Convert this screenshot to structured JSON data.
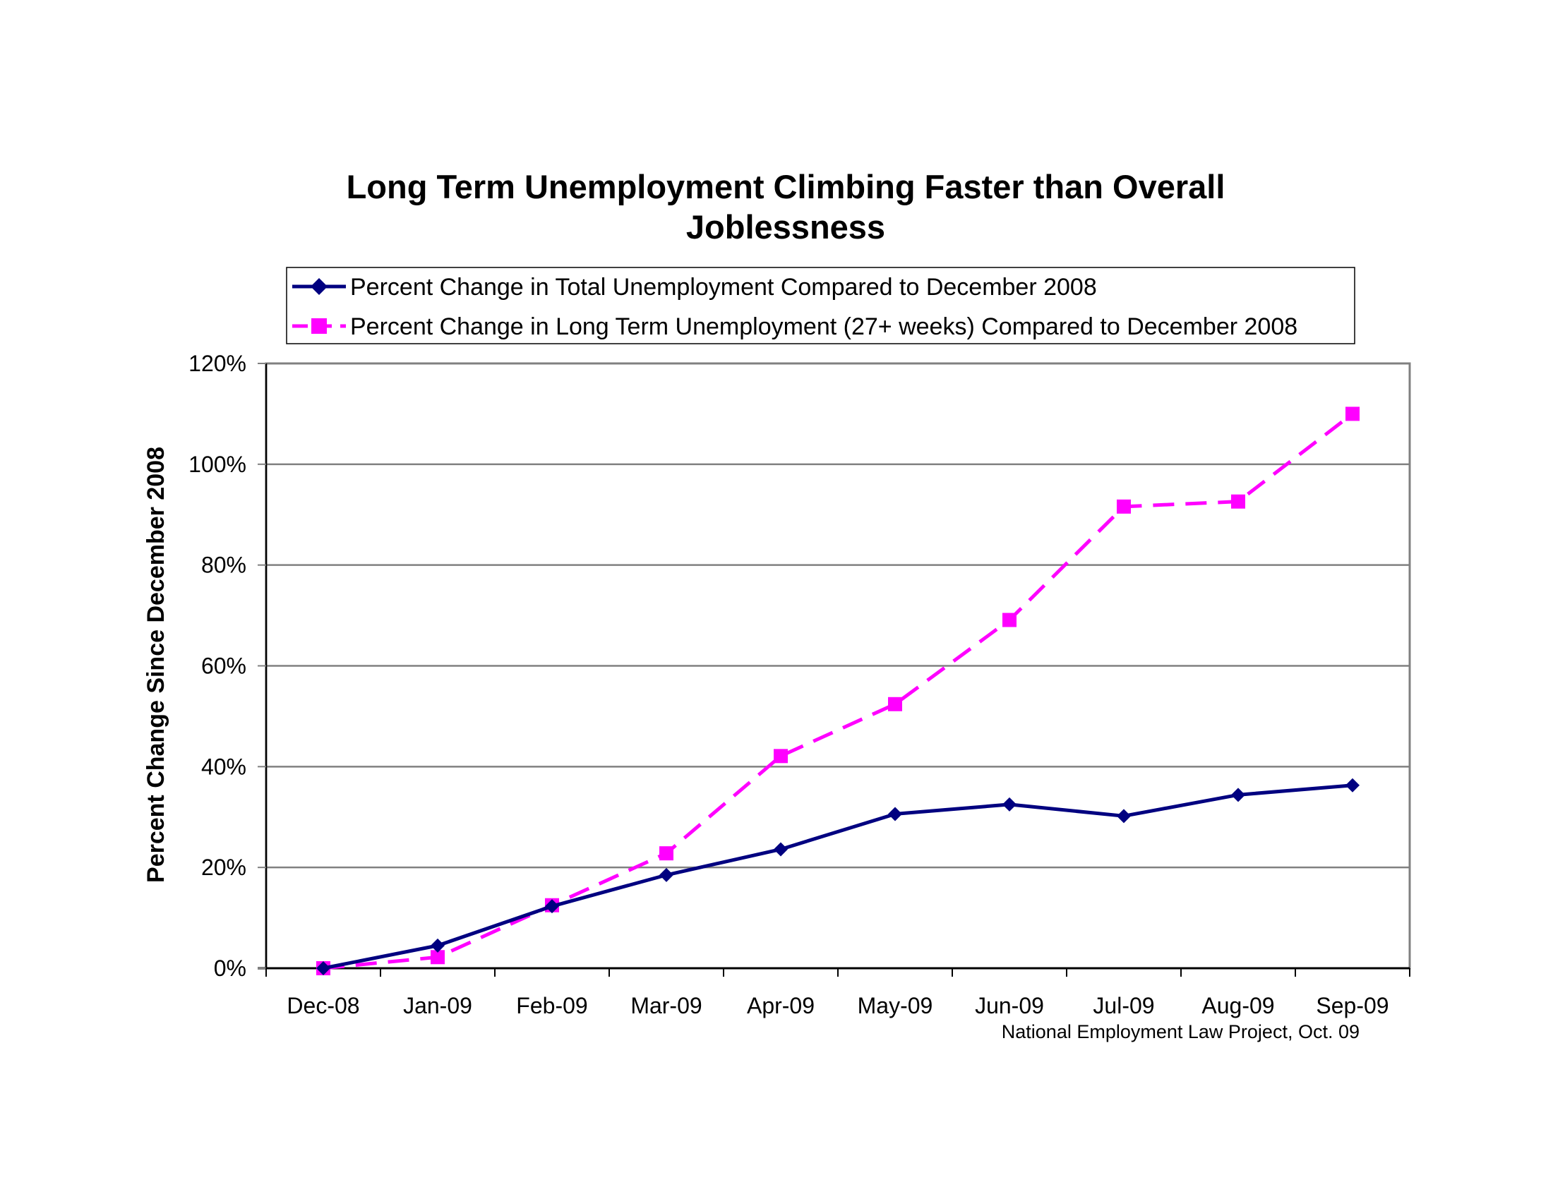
{
  "chart_data": {
    "type": "line",
    "title_lines": [
      "Long Term Unemployment Climbing Faster than Overall",
      "Joblessness"
    ],
    "ylabel": "Percent Change Since December 2008",
    "xlabel": "",
    "categories": [
      "Dec-08",
      "Jan-09",
      "Feb-09",
      "Mar-09",
      "Apr-09",
      "May-09",
      "Jun-09",
      "Jul-09",
      "Aug-09",
      "Sep-09"
    ],
    "y_ticks": [
      "0%",
      "20%",
      "40%",
      "60%",
      "80%",
      "100%",
      "120%"
    ],
    "ylim": [
      0,
      120
    ],
    "y_unit": "%",
    "grid": true,
    "legend_position": "top",
    "series": [
      {
        "name": "Percent Change in Total Unemployment Compared to December 2008",
        "color": "#000080",
        "marker": "diamond",
        "line_style": "solid",
        "values": [
          0,
          4.5,
          12.3,
          18.5,
          23.6,
          30.6,
          32.5,
          30.2,
          34.4,
          36.3
        ]
      },
      {
        "name": "Percent Change in Long Term Unemployment (27+ weeks) Compared to December 2008",
        "color": "#FF00FF",
        "marker": "square",
        "line_style": "dashed",
        "values": [
          0,
          2.2,
          12.5,
          22.8,
          42.1,
          52.4,
          69.1,
          91.6,
          92.6,
          110.0
        ]
      }
    ],
    "source_note": "National Employment Law Project, Oct. 09"
  }
}
